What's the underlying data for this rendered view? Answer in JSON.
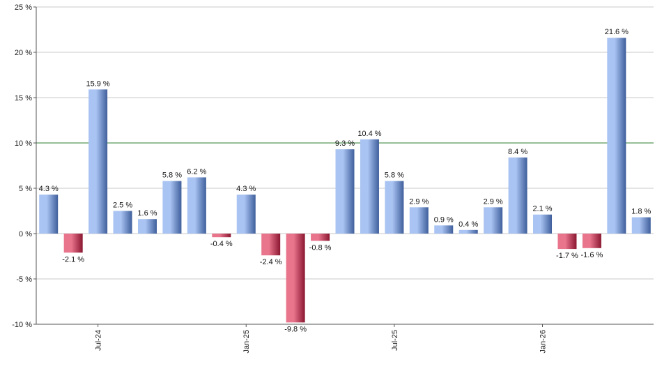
{
  "colors": {
    "positive_dark": "#3f5f9c",
    "positive_light": "#a9c3f2",
    "negative_dark": "#8a1630",
    "negative_light": "#e8758c",
    "grid": "#c8c8c8",
    "reference_line": "#2e7d32",
    "axis": "#555555"
  },
  "chart_data": {
    "type": "bar",
    "title": "",
    "xlabel": "",
    "ylabel": "",
    "ylim": [
      -10,
      25
    ],
    "y_ticks": [
      -10,
      -5,
      0,
      5,
      10,
      15,
      20,
      25
    ],
    "y_tick_labels": [
      "-10 %",
      "-5 %",
      "0 %",
      "5 %",
      "10 %",
      "15 %",
      "20 %",
      "25 %"
    ],
    "grid": true,
    "reference_line": 10,
    "x_tick_labels": [
      {
        "label": "Jul-24",
        "index": 2
      },
      {
        "label": "Jan-25",
        "index": 8
      },
      {
        "label": "Jul-25",
        "index": 14
      },
      {
        "label": "Jan-26",
        "index": 20
      }
    ],
    "values": [
      4.3,
      -2.1,
      15.9,
      2.5,
      1.6,
      5.8,
      6.2,
      -0.4,
      4.3,
      -2.4,
      -9.8,
      -0.8,
      9.3,
      10.4,
      5.8,
      2.9,
      0.9,
      0.4,
      2.9,
      8.4,
      2.1,
      -1.7,
      -1.6,
      21.6,
      1.8
    ],
    "value_labels": [
      "4.3 %",
      "-2.1 %",
      "15.9 %",
      "2.5 %",
      "1.6 %",
      "5.8 %",
      "6.2 %",
      "-0.4 %",
      "4.3 %",
      "-2.4 %",
      "-9.8 %",
      "-0.8 %",
      "9.3 %",
      "10.4 %",
      "5.8 %",
      "2.9 %",
      "0.9 %",
      "0.4 %",
      "2.9 %",
      "8.4 %",
      "2.1 %",
      "-1.7 %",
      "-1.6 %",
      "21.6 %",
      "1.8 %"
    ]
  }
}
